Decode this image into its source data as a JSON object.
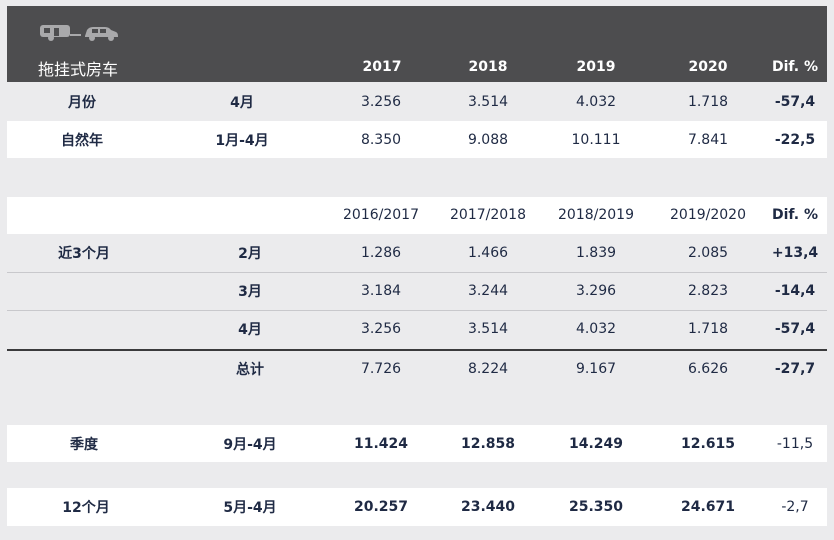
{
  "header": {
    "title": "拖挂式房车",
    "years": [
      "2017",
      "2018",
      "2019",
      "2020"
    ],
    "diff_label": "Dif. %"
  },
  "rows_top": [
    {
      "label": "月份",
      "period": "4月",
      "values": [
        "3.256",
        "3.514",
        "4.032",
        "1.718"
      ],
      "diff": "-57,4"
    },
    {
      "label": "自然年",
      "period": "1月-4月",
      "values": [
        "8.350",
        "9.088",
        "10.111",
        "7.841"
      ],
      "diff": "-22,5"
    }
  ],
  "season_header": {
    "years": [
      "2016/2017",
      "2017/2018",
      "2018/2019",
      "2019/2020"
    ],
    "diff_label": "Dif. %"
  },
  "recent": {
    "label": "近3个月",
    "rows": [
      {
        "period": "2月",
        "values": [
          "1.286",
          "1.466",
          "1.839",
          "2.085"
        ],
        "diff": "+13,4"
      },
      {
        "period": "3月",
        "values": [
          "3.184",
          "3.244",
          "3.296",
          "2.823"
        ],
        "diff": "-14,4"
      },
      {
        "period": "4月",
        "values": [
          "3.256",
          "3.514",
          "4.032",
          "1.718"
        ],
        "diff": "-57,4"
      }
    ],
    "total": {
      "period": "总计",
      "values": [
        "7.726",
        "8.224",
        "9.167",
        "6.626"
      ],
      "diff": "-27,7"
    }
  },
  "season": {
    "label": "季度",
    "period": "9月-4月",
    "values": [
      "11.424",
      "12.858",
      "14.249",
      "12.615"
    ],
    "diff": "-11,5"
  },
  "twelve": {
    "label": "12个月",
    "period": "5月-4月",
    "values": [
      "20.257",
      "23.440",
      "25.350",
      "24.671"
    ],
    "diff": "-2,7"
  },
  "icons": [
    "caravan-icon",
    "car-icon"
  ],
  "colors": {
    "header_bg": "#4d4d4f",
    "page_bg": "#ebebed",
    "text": "#1f2a44"
  }
}
